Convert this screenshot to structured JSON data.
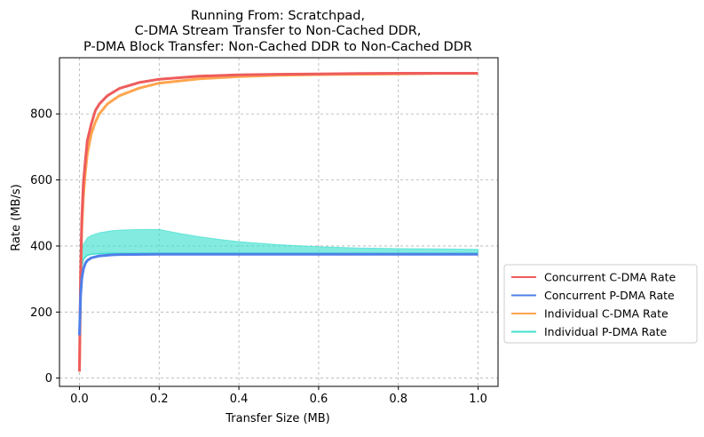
{
  "chart_data": {
    "type": "line",
    "title_lines": [
      "Running From: Scratchpad,",
      "C-DMA Stream Transfer to Non-Cached DDR,",
      "P-DMA Block Transfer: Non-Cached DDR to Non-Cached DDR"
    ],
    "xlabel": "Transfer Size (MB)",
    "ylabel": "Rate (MB/s)",
    "xlim": [
      -0.05,
      1.05
    ],
    "ylim": [
      -25,
      970
    ],
    "xticks": [
      0.0,
      0.2,
      0.4,
      0.6,
      0.8,
      1.0
    ],
    "xtick_labels": [
      "0.0",
      "0.2",
      "0.4",
      "0.6",
      "0.8",
      "1.0"
    ],
    "yticks": [
      0,
      200,
      400,
      600,
      800
    ],
    "ytick_labels": [
      "0",
      "200",
      "400",
      "600",
      "800"
    ],
    "grid": true,
    "grid_style": "dashed",
    "legend_position": "outside-right",
    "series": [
      {
        "name": "Individual P-DMA Rate",
        "color": "#40E0D0",
        "opacity": 0.65,
        "x": [
          0.0,
          0.005,
          0.01,
          0.02,
          0.03,
          0.05,
          0.08,
          0.1,
          0.15,
          0.2,
          0.25,
          0.3,
          0.35,
          0.4,
          0.5,
          0.6,
          0.7,
          0.8,
          0.9,
          1.0
        ],
        "y": [
          150,
          330,
          360,
          372,
          375,
          377,
          378,
          378,
          378,
          378,
          378,
          378,
          378,
          378,
          378,
          378,
          378,
          378,
          378,
          378
        ],
        "y_upper": [
          150,
          380,
          405,
          425,
          432,
          440,
          446,
          448,
          450,
          450,
          438,
          428,
          420,
          413,
          404,
          398,
          394,
          392,
          391,
          390
        ]
      },
      {
        "name": "Individual C-DMA Rate",
        "color": "#FFA54F",
        "x": [
          0.0,
          0.003,
          0.006,
          0.01,
          0.015,
          0.02,
          0.03,
          0.04,
          0.05,
          0.07,
          0.1,
          0.15,
          0.2,
          0.3,
          0.4,
          0.5,
          0.6,
          0.7,
          0.8,
          0.9,
          1.0
        ],
        "y": [
          20,
          300,
          450,
          550,
          625,
          680,
          740,
          775,
          800,
          830,
          855,
          878,
          893,
          906,
          913,
          917,
          919,
          920,
          921,
          922,
          922
        ]
      },
      {
        "name": "Concurrent C-DMA Rate",
        "color": "#EE5C5C",
        "x": [
          0.0,
          0.003,
          0.006,
          0.01,
          0.015,
          0.02,
          0.03,
          0.04,
          0.05,
          0.07,
          0.1,
          0.15,
          0.2,
          0.3,
          0.4,
          0.5,
          0.6,
          0.7,
          0.8,
          0.9,
          1.0
        ],
        "y": [
          20,
          320,
          480,
          590,
          660,
          720,
          770,
          810,
          830,
          855,
          877,
          895,
          905,
          914,
          918,
          920,
          921,
          922,
          923,
          923,
          923
        ]
      },
      {
        "name": "Concurrent P-DMA Rate",
        "color": "#4F7FE8",
        "x": [
          0.0,
          0.003,
          0.006,
          0.01,
          0.015,
          0.02,
          0.03,
          0.05,
          0.08,
          0.1,
          0.2,
          0.3,
          0.4,
          0.5,
          0.6,
          0.7,
          0.8,
          0.9,
          1.0
        ],
        "y": [
          130,
          250,
          300,
          330,
          348,
          356,
          364,
          370,
          373,
          374,
          375,
          375,
          375,
          375,
          375,
          375,
          375,
          375,
          375
        ]
      }
    ],
    "legend_order": [
      "Concurrent C-DMA Rate",
      "Concurrent P-DMA Rate",
      "Individual C-DMA Rate",
      "Individual P-DMA Rate"
    ]
  }
}
